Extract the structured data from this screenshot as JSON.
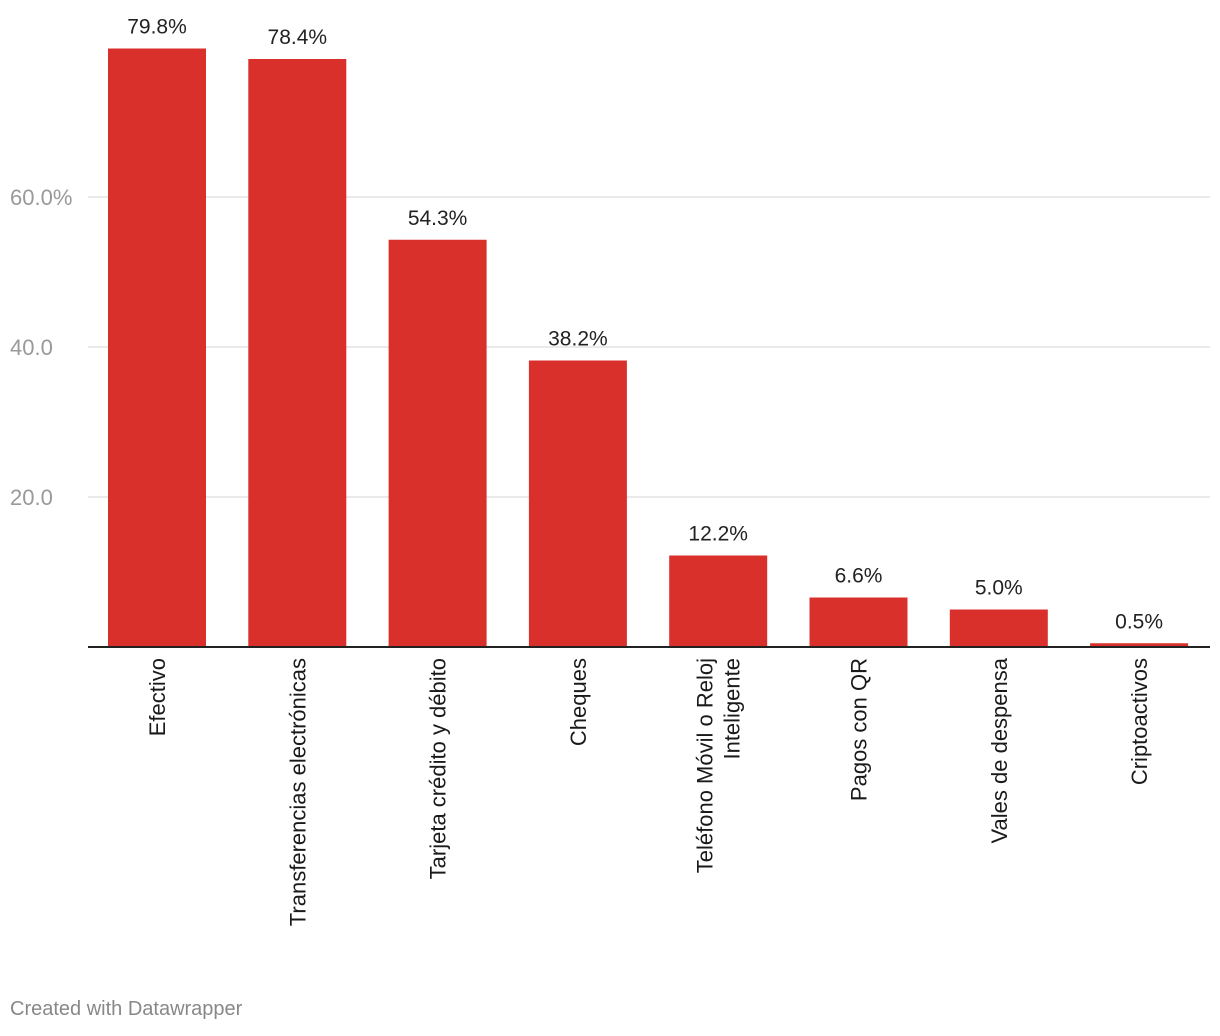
{
  "chart_data": {
    "type": "bar",
    "categories": [
      "Efectivo",
      "Transferencias electrónicas",
      "Tarjeta crédito y débito",
      "Cheques",
      [
        "Teléfono Móvil o Reloj",
        "Inteligente"
      ],
      "Pagos con QR",
      "Vales de despensa",
      "Criptoactivos"
    ],
    "values": [
      79.8,
      78.4,
      54.3,
      38.2,
      12.2,
      6.6,
      5.0,
      0.5
    ],
    "value_labels": [
      "79.8%",
      "78.4%",
      "54.3%",
      "38.2%",
      "12.2%",
      "6.6%",
      "5.0%",
      "0.5%"
    ],
    "yticks": [
      20,
      40,
      60
    ],
    "ytick_labels": [
      "20.0",
      "40.0",
      "60.0%"
    ],
    "ylim": [
      0,
      80
    ],
    "grid": true,
    "title": "",
    "xlabel": "",
    "ylabel": ""
  },
  "colors": {
    "bar": "#d9302c",
    "grid": "#e3e3e3",
    "axis": "#222222",
    "tick_label": "#999999",
    "value_label": "#222222",
    "category_label": "#1a1a1a"
  },
  "footer": {
    "credit": "Created with Datawrapper"
  }
}
